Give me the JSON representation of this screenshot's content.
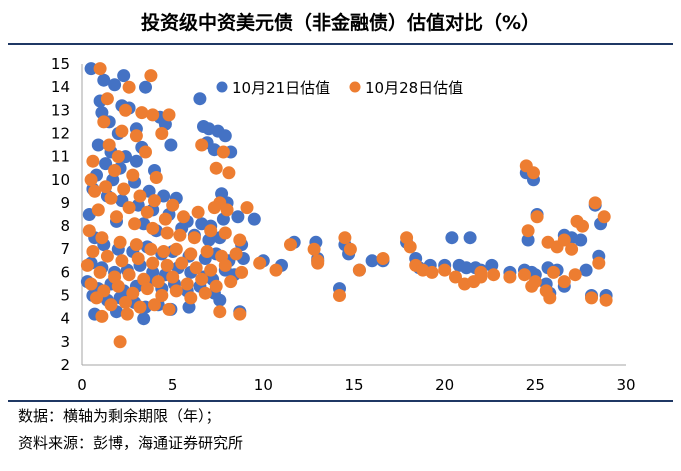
{
  "chart_data": {
    "type": "scatter",
    "title": "投资级中资美元债（非金融债）估值对比（%）",
    "xlabel": "",
    "ylabel": "",
    "xlim": [
      0,
      30
    ],
    "ylim": [
      2,
      15
    ],
    "x_ticks": [
      0,
      5,
      10,
      15,
      20,
      25,
      30
    ],
    "y_ticks": [
      2,
      3,
      4,
      5,
      6,
      7,
      8,
      9,
      10,
      11,
      12,
      13,
      14,
      15
    ],
    "legend_position": "top",
    "series": [
      {
        "name": "10月21日估值",
        "color": "#4472c4",
        "points": [
          [
            0.5,
            14.8
          ],
          [
            1.2,
            14.3
          ],
          [
            1.8,
            14.1
          ],
          [
            2.3,
            14.5
          ],
          [
            3.5,
            14.0
          ],
          [
            1.0,
            13.4
          ],
          [
            2.2,
            13.2
          ],
          [
            2.6,
            13.1
          ],
          [
            4.3,
            12.7
          ],
          [
            1.1,
            12.9
          ],
          [
            1.5,
            12.5
          ],
          [
            2.0,
            12.0
          ],
          [
            3.0,
            12.2
          ],
          [
            4.6,
            12.4
          ],
          [
            6.5,
            13.5
          ],
          [
            6.7,
            12.3
          ],
          [
            7.0,
            12.2
          ],
          [
            7.5,
            12.1
          ],
          [
            7.9,
            11.9
          ],
          [
            6.9,
            11.6
          ],
          [
            7.3,
            11.3
          ],
          [
            8.2,
            11.2
          ],
          [
            0.9,
            11.5
          ],
          [
            1.6,
            11.2
          ],
          [
            2.4,
            11.0
          ],
          [
            3.3,
            11.4
          ],
          [
            4.9,
            11.5
          ],
          [
            1.3,
            10.7
          ],
          [
            2.1,
            10.5
          ],
          [
            3.0,
            10.8
          ],
          [
            4.0,
            10.4
          ],
          [
            0.8,
            10.2
          ],
          [
            1.7,
            10.0
          ],
          [
            2.9,
            9.9
          ],
          [
            3.7,
            9.5
          ],
          [
            4.5,
            9.3
          ],
          [
            5.2,
            9.2
          ],
          [
            7.7,
            9.4
          ],
          [
            8.0,
            9.0
          ],
          [
            0.6,
            9.6
          ],
          [
            1.4,
            9.3
          ],
          [
            2.2,
            9.1
          ],
          [
            3.1,
            8.9
          ],
          [
            3.9,
            8.7
          ],
          [
            4.8,
            8.5
          ],
          [
            5.8,
            8.2
          ],
          [
            6.6,
            8.1
          ],
          [
            7.1,
            8.0
          ],
          [
            7.8,
            8.3
          ],
          [
            8.6,
            8.4
          ],
          [
            9.5,
            8.3
          ],
          [
            0.4,
            8.5
          ],
          [
            1.9,
            8.2
          ],
          [
            3.4,
            8.1
          ],
          [
            4.1,
            7.8
          ],
          [
            5.5,
            7.9
          ],
          [
            6.2,
            7.6
          ],
          [
            7.0,
            7.4
          ],
          [
            7.6,
            7.5
          ],
          [
            8.8,
            7.2
          ],
          [
            0.7,
            7.5
          ],
          [
            1.2,
            7.2
          ],
          [
            2.0,
            7.0
          ],
          [
            2.8,
            6.9
          ],
          [
            3.6,
            7.1
          ],
          [
            4.4,
            6.8
          ],
          [
            5.0,
            6.9
          ],
          [
            5.9,
            6.7
          ],
          [
            6.8,
            6.6
          ],
          [
            7.4,
            6.8
          ],
          [
            8.1,
            6.5
          ],
          [
            8.9,
            6.6
          ],
          [
            10.0,
            6.5
          ],
          [
            11.0,
            6.3
          ],
          [
            0.5,
            6.4
          ],
          [
            1.1,
            6.2
          ],
          [
            1.8,
            6.0
          ],
          [
            2.5,
            6.1
          ],
          [
            3.2,
            6.3
          ],
          [
            3.9,
            6.0
          ],
          [
            4.6,
            5.9
          ],
          [
            5.3,
            6.2
          ],
          [
            6.0,
            6.0
          ],
          [
            6.7,
            5.8
          ],
          [
            7.2,
            5.7
          ],
          [
            7.9,
            6.1
          ],
          [
            8.4,
            5.9
          ],
          [
            0.3,
            5.6
          ],
          [
            0.9,
            5.3
          ],
          [
            1.6,
            5.5
          ],
          [
            2.3,
            5.2
          ],
          [
            3.0,
            5.4
          ],
          [
            3.7,
            5.6
          ],
          [
            4.4,
            5.3
          ],
          [
            5.1,
            5.5
          ],
          [
            5.8,
            5.2
          ],
          [
            6.5,
            5.4
          ],
          [
            7.3,
            5.1
          ],
          [
            0.6,
            5.0
          ],
          [
            1.4,
            4.8
          ],
          [
            2.1,
            4.9
          ],
          [
            2.9,
            4.7
          ],
          [
            3.5,
            4.5
          ],
          [
            4.2,
            4.6
          ],
          [
            5.9,
            4.5
          ],
          [
            7.6,
            4.8
          ],
          [
            8.7,
            4.3
          ],
          [
            0.7,
            4.2
          ],
          [
            1.9,
            4.3
          ],
          [
            3.4,
            4.0
          ],
          [
            4.9,
            4.4
          ],
          [
            11.7,
            7.3
          ],
          [
            12.9,
            7.3
          ],
          [
            13.0,
            6.6
          ],
          [
            14.5,
            7.2
          ],
          [
            14.7,
            6.8
          ],
          [
            15.3,
            6.1
          ],
          [
            16.6,
            6.5
          ],
          [
            17.9,
            7.3
          ],
          [
            18.4,
            6.6
          ],
          [
            18.6,
            6.2
          ],
          [
            19.2,
            6.3
          ],
          [
            20.0,
            6.3
          ],
          [
            20.4,
            7.5
          ],
          [
            20.8,
            6.3
          ],
          [
            21.2,
            6.2
          ],
          [
            21.4,
            7.5
          ],
          [
            21.7,
            6.2
          ],
          [
            22.6,
            6.3
          ],
          [
            23.6,
            6.0
          ],
          [
            24.5,
            10.3
          ],
          [
            24.9,
            10.0
          ],
          [
            25.1,
            8.5
          ],
          [
            24.6,
            7.4
          ],
          [
            25.7,
            6.2
          ],
          [
            26.2,
            6.1
          ],
          [
            26.6,
            7.6
          ],
          [
            27.0,
            7.5
          ],
          [
            27.5,
            7.4
          ],
          [
            27.8,
            6.1
          ],
          [
            28.3,
            8.9
          ],
          [
            28.6,
            8.1
          ],
          [
            28.5,
            6.7
          ],
          [
            24.4,
            6.1
          ],
          [
            25.0,
            5.9
          ],
          [
            25.6,
            5.5
          ],
          [
            24.8,
            6.0
          ],
          [
            26.6,
            5.4
          ],
          [
            25.8,
            5.1
          ],
          [
            28.1,
            5.0
          ],
          [
            28.9,
            5.0
          ],
          [
            14.2,
            5.3
          ],
          [
            16.0,
            6.5
          ],
          [
            13.0,
            6.5
          ],
          [
            22.0,
            6.1
          ]
        ]
      },
      {
        "name": "10月28日估值",
        "color": "#ed7d31",
        "points": [
          [
            1.0,
            14.8
          ],
          [
            3.8,
            14.5
          ],
          [
            2.6,
            14.0
          ],
          [
            1.4,
            13.5
          ],
          [
            2.4,
            13.0
          ],
          [
            3.3,
            12.9
          ],
          [
            3.9,
            12.8
          ],
          [
            4.8,
            12.8
          ],
          [
            1.2,
            12.5
          ],
          [
            2.2,
            12.1
          ],
          [
            3.0,
            11.9
          ],
          [
            4.4,
            12.0
          ],
          [
            1.5,
            11.5
          ],
          [
            2.0,
            11.0
          ],
          [
            3.5,
            11.2
          ],
          [
            6.6,
            11.5
          ],
          [
            7.8,
            11.2
          ],
          [
            0.6,
            10.8
          ],
          [
            1.8,
            10.4
          ],
          [
            2.8,
            10.2
          ],
          [
            4.1,
            10.1
          ],
          [
            7.4,
            10.5
          ],
          [
            8.1,
            10.3
          ],
          [
            0.5,
            10.0
          ],
          [
            1.3,
            9.7
          ],
          [
            2.3,
            9.6
          ],
          [
            3.2,
            9.3
          ],
          [
            4.0,
            9.1
          ],
          [
            5.0,
            8.9
          ],
          [
            7.6,
            9.0
          ],
          [
            0.7,
            9.5
          ],
          [
            1.6,
            9.2
          ],
          [
            2.6,
            8.8
          ],
          [
            3.6,
            8.6
          ],
          [
            4.6,
            8.3
          ],
          [
            5.6,
            8.4
          ],
          [
            6.4,
            8.6
          ],
          [
            7.3,
            8.8
          ],
          [
            8.0,
            8.7
          ],
          [
            9.1,
            8.8
          ],
          [
            0.9,
            8.7
          ],
          [
            1.9,
            8.4
          ],
          [
            2.9,
            8.1
          ],
          [
            3.9,
            7.9
          ],
          [
            4.7,
            7.7
          ],
          [
            5.4,
            7.6
          ],
          [
            6.2,
            7.5
          ],
          [
            7.1,
            7.8
          ],
          [
            7.9,
            7.7
          ],
          [
            8.7,
            7.4
          ],
          [
            0.4,
            7.8
          ],
          [
            1.1,
            7.5
          ],
          [
            2.1,
            7.3
          ],
          [
            3.0,
            7.2
          ],
          [
            3.8,
            7.0
          ],
          [
            4.5,
            6.9
          ],
          [
            5.2,
            7.0
          ],
          [
            6.0,
            6.8
          ],
          [
            6.9,
            6.9
          ],
          [
            7.7,
            6.7
          ],
          [
            8.5,
            6.8
          ],
          [
            9.8,
            6.4
          ],
          [
            0.6,
            6.9
          ],
          [
            1.4,
            6.7
          ],
          [
            2.2,
            6.5
          ],
          [
            3.1,
            6.6
          ],
          [
            3.9,
            6.4
          ],
          [
            4.7,
            6.3
          ],
          [
            5.5,
            6.4
          ],
          [
            6.3,
            6.2
          ],
          [
            7.1,
            6.1
          ],
          [
            7.9,
            6.3
          ],
          [
            8.8,
            6.0
          ],
          [
            10.7,
            6.1
          ],
          [
            0.3,
            6.3
          ],
          [
            1.0,
            6.0
          ],
          [
            1.8,
            5.8
          ],
          [
            2.6,
            5.9
          ],
          [
            3.4,
            5.7
          ],
          [
            4.2,
            5.6
          ],
          [
            5.0,
            5.8
          ],
          [
            5.8,
            5.5
          ],
          [
            6.6,
            5.7
          ],
          [
            7.4,
            5.4
          ],
          [
            8.2,
            5.6
          ],
          [
            0.5,
            5.5
          ],
          [
            1.2,
            5.2
          ],
          [
            2.0,
            5.4
          ],
          [
            2.8,
            5.1
          ],
          [
            3.6,
            5.3
          ],
          [
            4.4,
            5.0
          ],
          [
            5.2,
            5.2
          ],
          [
            6.0,
            4.9
          ],
          [
            6.8,
            5.1
          ],
          [
            0.8,
            4.9
          ],
          [
            1.6,
            4.6
          ],
          [
            2.4,
            4.7
          ],
          [
            3.2,
            4.5
          ],
          [
            4.0,
            4.6
          ],
          [
            4.8,
            4.4
          ],
          [
            7.6,
            4.3
          ],
          [
            8.7,
            4.2
          ],
          [
            1.1,
            4.1
          ],
          [
            2.5,
            4.2
          ],
          [
            2.1,
            3.0
          ],
          [
            11.5,
            7.2
          ],
          [
            12.8,
            7.0
          ],
          [
            13.0,
            6.5
          ],
          [
            14.5,
            7.5
          ],
          [
            14.8,
            7.0
          ],
          [
            15.3,
            6.1
          ],
          [
            16.6,
            6.6
          ],
          [
            17.9,
            7.5
          ],
          [
            18.1,
            7.1
          ],
          [
            18.4,
            6.3
          ],
          [
            18.8,
            6.1
          ],
          [
            19.3,
            6.0
          ],
          [
            20.0,
            6.1
          ],
          [
            20.6,
            5.8
          ],
          [
            21.1,
            5.5
          ],
          [
            21.6,
            5.6
          ],
          [
            22.0,
            6.0
          ],
          [
            22.7,
            5.9
          ],
          [
            23.6,
            5.8
          ],
          [
            24.5,
            10.6
          ],
          [
            24.9,
            10.3
          ],
          [
            25.1,
            8.4
          ],
          [
            24.6,
            7.8
          ],
          [
            25.7,
            7.3
          ],
          [
            26.2,
            7.1
          ],
          [
            26.6,
            7.4
          ],
          [
            27.0,
            7.0
          ],
          [
            27.3,
            8.2
          ],
          [
            27.6,
            8.0
          ],
          [
            28.3,
            9.0
          ],
          [
            28.8,
            8.4
          ],
          [
            28.5,
            6.4
          ],
          [
            24.4,
            5.9
          ],
          [
            25.0,
            5.6
          ],
          [
            25.6,
            5.2
          ],
          [
            24.8,
            5.4
          ],
          [
            26.6,
            5.6
          ],
          [
            25.8,
            4.9
          ],
          [
            28.1,
            4.9
          ],
          [
            28.9,
            4.8
          ],
          [
            14.2,
            5.0
          ],
          [
            13.0,
            6.4
          ],
          [
            22.0,
            5.8
          ],
          [
            26.0,
            6.0
          ],
          [
            27.2,
            5.9
          ]
        ]
      }
    ]
  },
  "notes": {
    "line1": "数据：横轴为剩余期限（年）；",
    "line2": "资料来源：彭博，海通证券研究所"
  }
}
